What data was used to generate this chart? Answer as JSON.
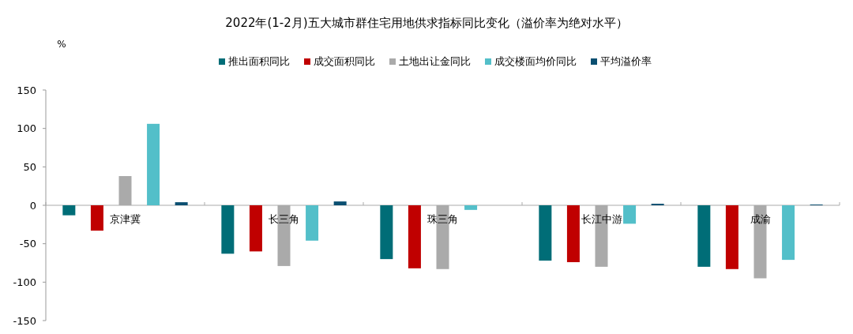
{
  "chart_data": {
    "type": "bar",
    "title": "2022年(1-2月)五大城市群住宅用地供求指标同比变化（溢价率为绝对水平）",
    "ylabel": "%",
    "categories": [
      "京津冀",
      "长三角",
      "珠三角",
      "长江中游",
      "成渝"
    ],
    "series": [
      {
        "name": "推出面积同比",
        "color": "#006d77",
        "values": [
          -13,
          -63,
          -70,
          -72,
          -80
        ]
      },
      {
        "name": "成交面积同比",
        "color": "#c00000",
        "values": [
          -33,
          -60,
          -82,
          -74,
          -83
        ]
      },
      {
        "name": "土地出让金同比",
        "color": "#aaaaaa",
        "values": [
          38,
          -79,
          -83,
          -80,
          -95
        ]
      },
      {
        "name": "成交楼面均价同比",
        "color": "#53bfc9",
        "values": [
          106,
          -46,
          -6,
          -24,
          -71
        ]
      },
      {
        "name": "平均溢价率",
        "color": "#0b4f71",
        "values": [
          4,
          5,
          null,
          2,
          1
        ]
      }
    ],
    "ylim": [
      -150,
      150
    ],
    "yticks": [
      -150,
      -100,
      -50,
      0,
      50,
      100,
      150
    ],
    "grid": false,
    "legend": "top"
  }
}
